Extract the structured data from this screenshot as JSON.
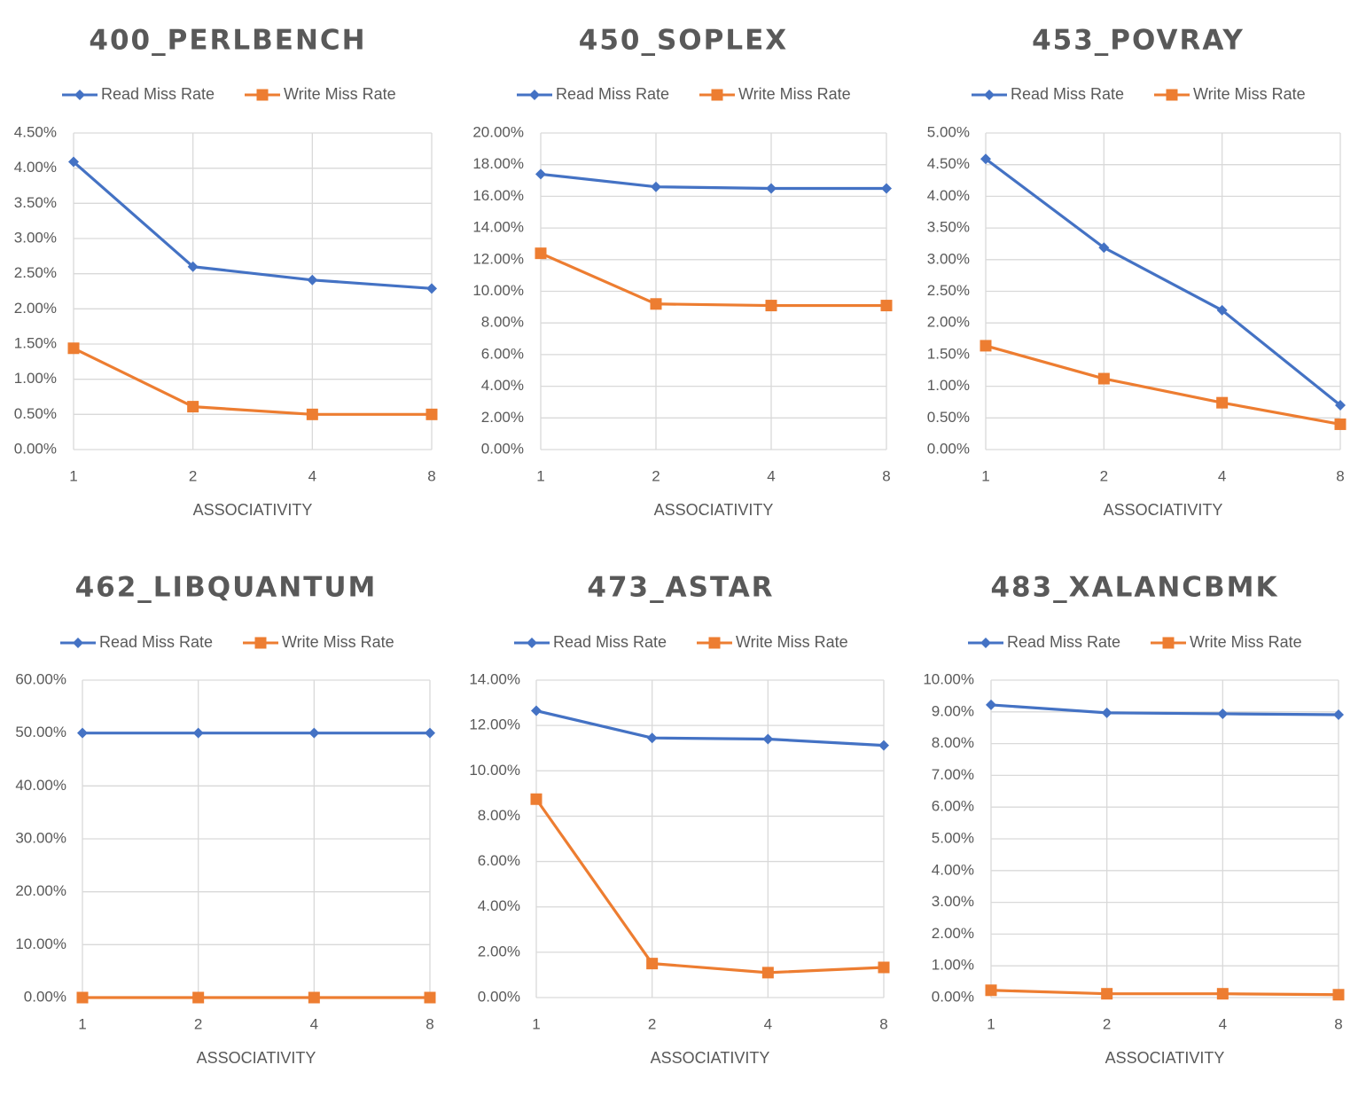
{
  "colors": {
    "read": "#4472C4",
    "write": "#ED7D31",
    "grid": "#D9D9D9",
    "text": "#595959"
  },
  "chart_data": [
    {
      "type": "line",
      "title": "400_PERLBENCH",
      "xlabel": "ASSOCIATIVITY",
      "ylabel": "",
      "categories": [
        "1",
        "2",
        "4",
        "8"
      ],
      "ylim": [
        0,
        0.045
      ],
      "yticks": [
        "0.00%",
        "0.50%",
        "1.00%",
        "1.50%",
        "2.00%",
        "2.50%",
        "3.00%",
        "3.50%",
        "4.00%",
        "4.50%"
      ],
      "legend_position": "top",
      "grid": true,
      "series": [
        {
          "name": "Read Miss Rate",
          "marker": "diamond",
          "values": [
            0.0409,
            0.026,
            0.0241,
            0.0229
          ]
        },
        {
          "name": "Write Miss Rate",
          "marker": "square",
          "values": [
            0.0144,
            0.0061,
            0.005,
            0.005
          ]
        }
      ]
    },
    {
      "type": "line",
      "title": "450_SOPLEX",
      "xlabel": "ASSOCIATIVITY",
      "ylabel": "",
      "categories": [
        "1",
        "2",
        "4",
        "8"
      ],
      "ylim": [
        0,
        0.2
      ],
      "yticks": [
        "0.00%",
        "2.00%",
        "4.00%",
        "6.00%",
        "8.00%",
        "10.00%",
        "12.00%",
        "14.00%",
        "16.00%",
        "18.00%",
        "20.00%"
      ],
      "legend_position": "top",
      "grid": true,
      "series": [
        {
          "name": "Read Miss Rate",
          "marker": "diamond",
          "values": [
            0.174,
            0.166,
            0.165,
            0.165
          ]
        },
        {
          "name": "Write Miss Rate",
          "marker": "square",
          "values": [
            0.124,
            0.092,
            0.091,
            0.091
          ]
        }
      ]
    },
    {
      "type": "line",
      "title": "453_POVRAY",
      "xlabel": "ASSOCIATIVITY",
      "ylabel": "",
      "categories": [
        "1",
        "2",
        "4",
        "8"
      ],
      "ylim": [
        0,
        0.05
      ],
      "yticks": [
        "0.00%",
        "0.50%",
        "1.00%",
        "1.50%",
        "2.00%",
        "2.50%",
        "3.00%",
        "3.50%",
        "4.00%",
        "4.50%",
        "5.00%"
      ],
      "legend_position": "top",
      "grid": true,
      "series": [
        {
          "name": "Read Miss Rate",
          "marker": "diamond",
          "values": [
            0.0459,
            0.0319,
            0.022,
            0.007
          ]
        },
        {
          "name": "Write Miss Rate",
          "marker": "square",
          "values": [
            0.0164,
            0.0112,
            0.0074,
            0.004
          ]
        }
      ]
    },
    {
      "type": "line",
      "title": "462_LIBQUANTUM",
      "xlabel": "ASSOCIATIVITY",
      "ylabel": "",
      "categories": [
        "1",
        "2",
        "4",
        "8"
      ],
      "ylim": [
        0,
        0.6
      ],
      "yticks": [
        "0.00%",
        "10.00%",
        "20.00%",
        "30.00%",
        "40.00%",
        "50.00%",
        "60.00%"
      ],
      "legend_position": "top",
      "grid": true,
      "series": [
        {
          "name": "Read Miss Rate",
          "marker": "diamond",
          "values": [
            0.5,
            0.5,
            0.5,
            0.5
          ]
        },
        {
          "name": "Write Miss Rate",
          "marker": "square",
          "values": [
            0.0,
            0.0,
            0.0,
            0.0
          ]
        }
      ]
    },
    {
      "type": "line",
      "title": "473_ASTAR",
      "xlabel": "ASSOCIATIVITY",
      "ylabel": "",
      "categories": [
        "1",
        "2",
        "4",
        "8"
      ],
      "ylim": [
        0,
        0.14
      ],
      "yticks": [
        "0.00%",
        "2.00%",
        "4.00%",
        "6.00%",
        "8.00%",
        "10.00%",
        "12.00%",
        "14.00%"
      ],
      "legend_position": "top",
      "grid": true,
      "series": [
        {
          "name": "Read Miss Rate",
          "marker": "diamond",
          "values": [
            0.1265,
            0.1145,
            0.114,
            0.1112
          ]
        },
        {
          "name": "Write Miss Rate",
          "marker": "square",
          "values": [
            0.0875,
            0.015,
            0.011,
            0.0133
          ]
        }
      ]
    },
    {
      "type": "line",
      "title": "483_XALANCBMK",
      "xlabel": "ASSOCIATIVITY",
      "ylabel": "",
      "categories": [
        "1",
        "2",
        "4",
        "8"
      ],
      "ylim": [
        0,
        0.1
      ],
      "yticks": [
        "0.00%",
        "1.00%",
        "2.00%",
        "3.00%",
        "4.00%",
        "5.00%",
        "6.00%",
        "7.00%",
        "8.00%",
        "9.00%",
        "10.00%"
      ],
      "legend_position": "top",
      "grid": true,
      "series": [
        {
          "name": "Read Miss Rate",
          "marker": "diamond",
          "values": [
            0.0922,
            0.0897,
            0.0894,
            0.0891
          ]
        },
        {
          "name": "Write Miss Rate",
          "marker": "square",
          "values": [
            0.0023,
            0.0012,
            0.0012,
            0.0009
          ]
        }
      ]
    }
  ]
}
